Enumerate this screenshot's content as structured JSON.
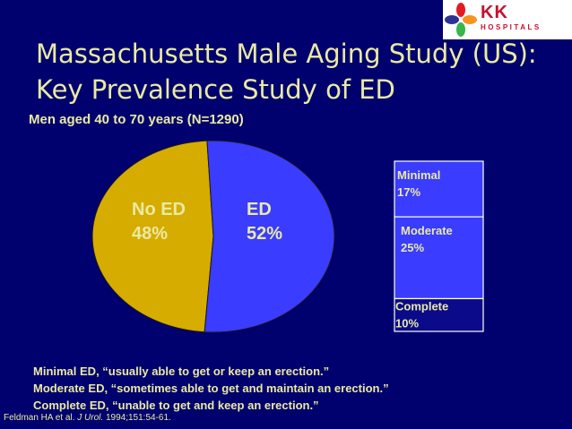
{
  "logo": {
    "text": "KK",
    "subtext": "HOSPITALS",
    "colors": {
      "red": "#e31b23",
      "orange": "#f7931e",
      "green": "#39b54a",
      "blue": "#2e3192",
      "text": "#c8102e"
    }
  },
  "slide": {
    "title_line1": "Massachusetts Male Aging Study (US):",
    "title_line2": "Key Prevalence Study of ED",
    "subtitle": "Men aged 40 to 70 years (N=1290)"
  },
  "chart_data": {
    "type": "pie",
    "slices": [
      {
        "label": "No ED",
        "value_label": "48%",
        "value": 48,
        "color": "#d6ac00"
      },
      {
        "label": "ED",
        "value_label": "52%",
        "value": 52,
        "color": "#3a3cff"
      }
    ],
    "breakdown": {
      "type": "stacked-bar",
      "of": "ED",
      "segments": [
        {
          "label": "Minimal",
          "value_label": "17%",
          "value": 17,
          "color": "#3a3cff"
        },
        {
          "label": "Moderate",
          "value_label": "25%",
          "value": 25,
          "color": "#3a3cff"
        },
        {
          "label": "Complete",
          "value_label": "10%",
          "value": 10,
          "color": "#0a0a8a"
        }
      ]
    },
    "colors": {
      "background": "#00006e",
      "text": "#eaeaa2"
    }
  },
  "definitions": [
    "Minimal ED, “usually able to get or keep an erection.”",
    "Moderate ED, “sometimes able to get and maintain an erection.”",
    "Complete ED, “unable to get and keep an erection.”"
  ],
  "citation": {
    "authors": "Feldman HA et al. ",
    "journal": "J Urol.",
    "details": " 1994;151:54-61."
  }
}
